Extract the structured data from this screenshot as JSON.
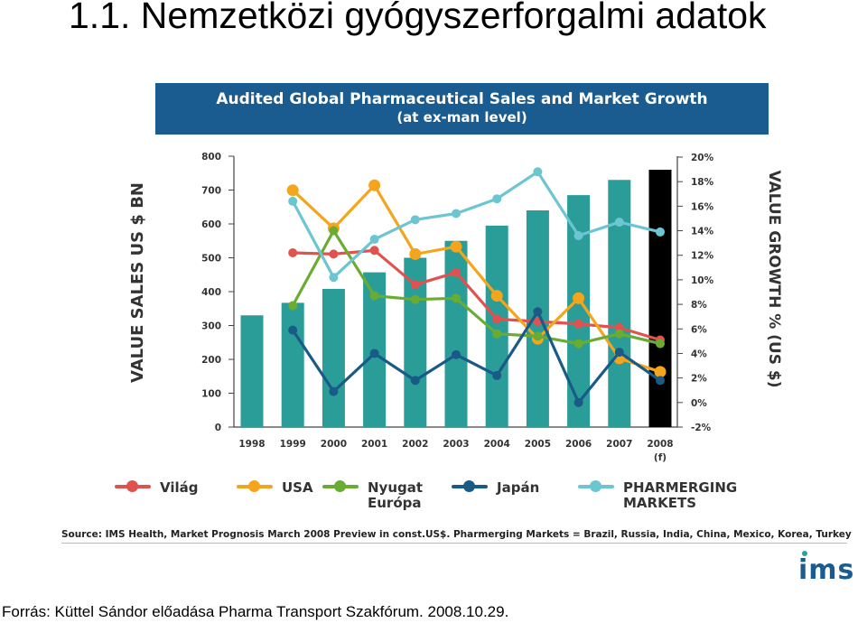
{
  "slide_title": "1.1. Nemzetközi gyógyszerforgalmi adatok",
  "banner": {
    "line1": "Audited Global Pharmaceutical Sales and Market Growth",
    "line2": "(at ex-man level)"
  },
  "chart_data": {
    "type": "bar",
    "title": "Audited Global Pharmaceutical Sales and Market Growth",
    "subtitle": "(at ex-man level)",
    "categories": [
      "1998",
      "1999",
      "2000",
      "2001",
      "2002",
      "2003",
      "2004",
      "2005",
      "2006",
      "2007",
      "2008"
    ],
    "category_sublabels": [
      "",
      "",
      "",
      "",
      "",
      "",
      "",
      "",
      "",
      "",
      "(f)"
    ],
    "ylabel": "VALUE SALES US $ BN",
    "ylim": [
      0,
      800
    ],
    "yticks": [
      "0",
      "100",
      "200",
      "300",
      "400",
      "500",
      "600",
      "700",
      "800"
    ],
    "y2label": "VALUE GROWTH % (US $)",
    "y2lim": [
      -2,
      20
    ],
    "y2ticks": [
      "-2%",
      "0%",
      "2%",
      "4%",
      "6%",
      "8%",
      "10%",
      "12%",
      "14%",
      "16%",
      "18%",
      "20%"
    ],
    "bars": {
      "values": [
        330,
        367,
        408,
        457,
        500,
        550,
        595,
        640,
        685,
        730,
        760
      ],
      "color": "#2a9d98",
      "highlight_color": "#000000",
      "highlight_index": 10
    },
    "series": [
      {
        "name": "Világ",
        "color": "#e0524f",
        "axis": "right",
        "values": [
          null,
          12.2,
          12.1,
          12.4,
          9.6,
          10.6,
          6.8,
          6.6,
          6.4,
          6.1,
          5.1
        ]
      },
      {
        "name": "USA",
        "color": "#f4a51c",
        "axis": "right",
        "values": [
          null,
          17.3,
          14.2,
          17.7,
          12.1,
          12.7,
          8.7,
          5.2,
          8.5,
          3.6,
          2.5
        ]
      },
      {
        "name": "Nyugat Európa",
        "color": "#6aac32",
        "axis": "right",
        "values": [
          null,
          7.9,
          14.0,
          8.7,
          8.4,
          8.5,
          5.6,
          5.4,
          4.8,
          5.6,
          4.8
        ]
      },
      {
        "name": "Japán",
        "color": "#1a5a87",
        "axis": "right",
        "values": [
          null,
          5.9,
          0.9,
          4.0,
          1.8,
          3.9,
          2.2,
          7.4,
          0.0,
          4.1,
          1.8
        ]
      },
      {
        "name": "PHARMERGING MARKETS",
        "color": "#6cc6d2",
        "axis": "right",
        "values": [
          null,
          16.4,
          10.2,
          13.3,
          14.9,
          15.4,
          16.6,
          18.8,
          13.6,
          14.7,
          13.9
        ]
      }
    ],
    "legend_position": "bottom",
    "grid": false
  },
  "legend": [
    {
      "label": "Világ",
      "color": "#e0524f"
    },
    {
      "label": "USA",
      "color": "#f4a51c"
    },
    {
      "label": "Nyugat\nEurópa",
      "color": "#6aac32"
    },
    {
      "label": "Japán",
      "color": "#1a5a87"
    },
    {
      "label": "PHARMERGING\nMARKETS",
      "color": "#6cc6d2"
    }
  ],
  "source_note": "Source: IMS Health, Market Prognosis March 2008 Preview in const.US$. Pharmerging Markets = Brazil, Russia, India, China, Mexico, Korea, Turkey",
  "logo_text": "ims",
  "footer": "Forrás: Küttel Sándor előadása Pharma Transport Szakfórum. 2008.10.29."
}
